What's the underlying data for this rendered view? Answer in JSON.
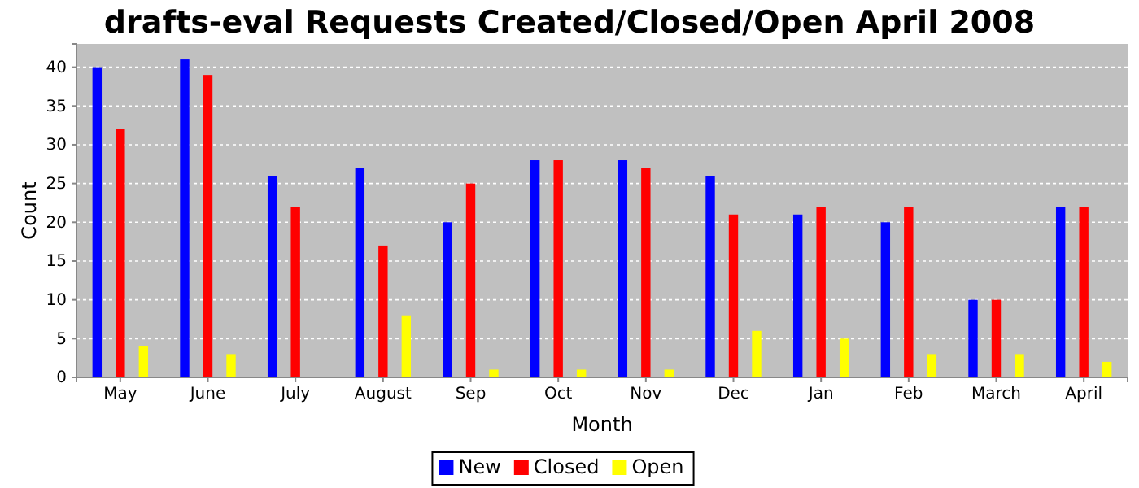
{
  "chart_data": {
    "type": "bar",
    "title": "drafts-eval Requests Created/Closed/Open April 2008",
    "xlabel": "Month",
    "ylabel": "Count",
    "categories": [
      "May",
      "June",
      "July",
      "August",
      "Sep",
      "Oct",
      "Nov",
      "Dec",
      "Jan",
      "Feb",
      "March",
      "April"
    ],
    "series": [
      {
        "name": "New",
        "color": "#0000ff",
        "values": [
          40,
          41,
          26,
          27,
          20,
          28,
          28,
          26,
          21,
          20,
          10,
          22
        ]
      },
      {
        "name": "Closed",
        "color": "#ff0000",
        "values": [
          32,
          39,
          22,
          17,
          25,
          28,
          27,
          21,
          22,
          22,
          10,
          22
        ]
      },
      {
        "name": "Open",
        "color": "#ffff00",
        "values": [
          4,
          3,
          0,
          8,
          1,
          1,
          1,
          6,
          5,
          3,
          3,
          2
        ]
      }
    ],
    "ylim": [
      0,
      43
    ],
    "yticks": [
      0,
      5,
      10,
      15,
      20,
      25,
      30,
      35,
      40
    ],
    "grid": "y",
    "legend": "bottom"
  }
}
